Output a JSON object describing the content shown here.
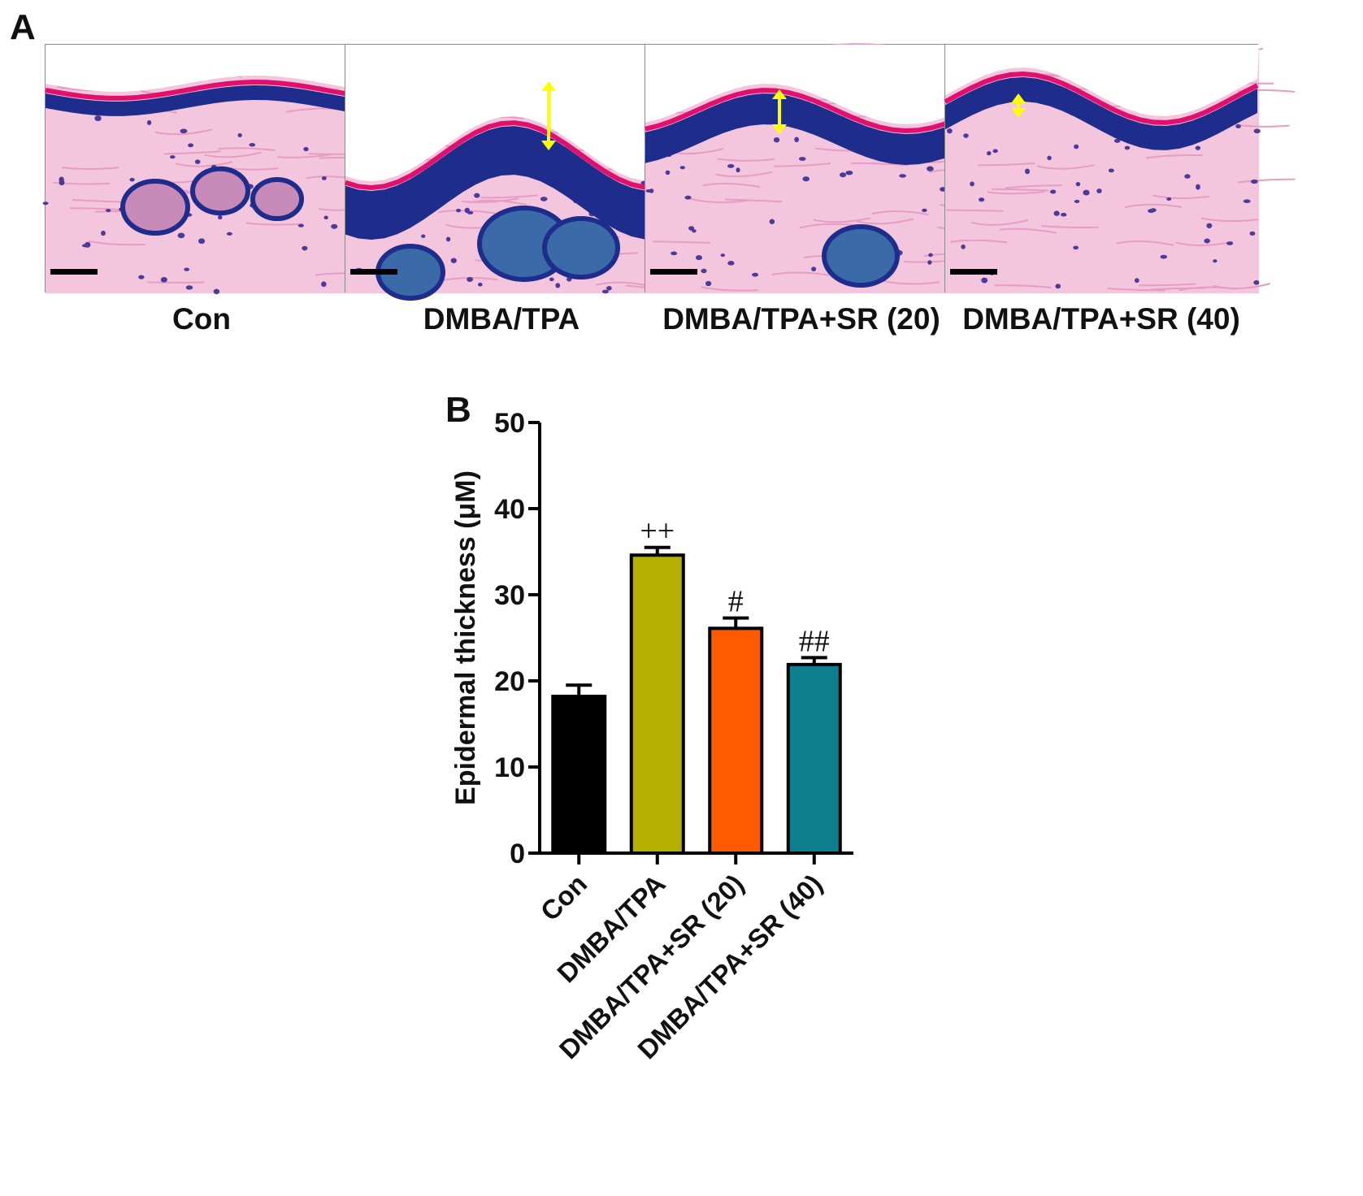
{
  "figure": {
    "panel_a_letter": "A",
    "panel_b_letter": "B",
    "panel_a": {
      "images": [
        {
          "label": "Con",
          "thickness_marker": false
        },
        {
          "label": "DMBA/TPA",
          "thickness_marker": true
        },
        {
          "label": "DMBA/TPA+SR (20)",
          "thickness_marker": true
        },
        {
          "label": "DMBA/TPA+SR (40)",
          "thickness_marker": true
        }
      ],
      "colors": {
        "dermis": "#f4c6de",
        "epidermis": "#1e2c8c",
        "stratum_corneum": "#e0106e",
        "marker": "#ffff00",
        "scale_bar": "#000000"
      }
    }
  },
  "chart_data": {
    "type": "bar",
    "categories": [
      "Con",
      "DMBA/TPA",
      "DMBA/TPA+SR (20)",
      "DMBA/TPA+SR (40)"
    ],
    "values": [
      18.2,
      34.6,
      26.1,
      21.9
    ],
    "errors": [
      1.3,
      0.9,
      1.2,
      0.8
    ],
    "annotations": [
      "",
      "++",
      "#",
      "##"
    ],
    "colors": [
      "#000000",
      "#b5b000",
      "#ff5a00",
      "#0e7f8e"
    ],
    "ylabel": "Epidermal thickness (μM)",
    "xlabel": "",
    "ylim": [
      0,
      50
    ],
    "yticks": [
      0,
      10,
      20,
      30,
      40,
      50
    ],
    "grid": false
  }
}
